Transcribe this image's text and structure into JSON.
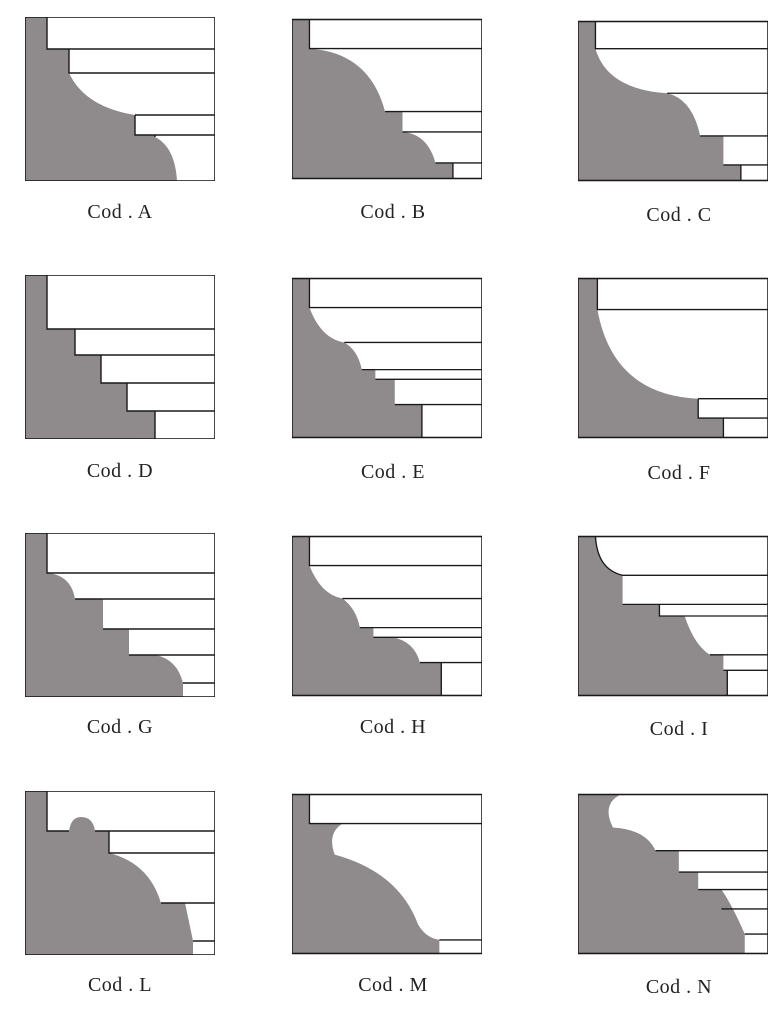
{
  "colors": {
    "profile_fill": "#8f8a8c",
    "outline": "#1a1a1a",
    "background": "#ffffff"
  },
  "profiles": [
    {
      "code": "Cod . A"
    },
    {
      "code": "Cod . B"
    },
    {
      "code": "Cod . C"
    },
    {
      "code": "Cod . D"
    },
    {
      "code": "Cod . E"
    },
    {
      "code": "Cod . F"
    },
    {
      "code": "Cod . G"
    },
    {
      "code": "Cod . H"
    },
    {
      "code": "Cod . I"
    },
    {
      "code": "Cod . L"
    },
    {
      "code": "Cod . M"
    },
    {
      "code": "Cod . N"
    }
  ]
}
